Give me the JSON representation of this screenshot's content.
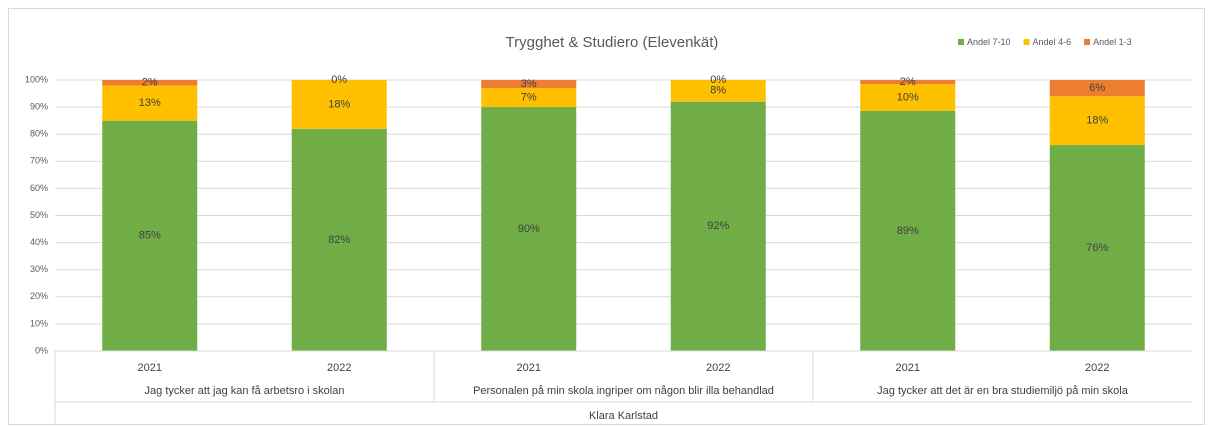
{
  "chart_data": {
    "type": "stacked_bar",
    "title": "Trygghet & Studiero (Elevenkät)",
    "categories": [
      "2021",
      "2022",
      "2021",
      "2022",
      "2021",
      "2022"
    ],
    "category_groups": [
      {
        "label": "Jag tycker att jag kan få arbetsro i skolan",
        "span": 2
      },
      {
        "label": "Personalen på min skola ingriper om någon blir illa behandlad",
        "span": 2
      },
      {
        "label": "Jag tycker att det är en bra studiemiljö på min skola",
        "span": 2
      }
    ],
    "category_super": "Klara Karlstad",
    "series": [
      {
        "name": "Andel 7-10",
        "color": "#70ad47",
        "values": [
          85,
          82,
          90,
          92,
          88.6,
          76
        ],
        "value_labels": [
          "85%",
          "82%",
          "90%",
          "92%",
          "89%",
          "76%"
        ]
      },
      {
        "name": "Andel 4-6",
        "color": "#ffc000",
        "values": [
          13,
          18,
          7,
          8,
          9.9,
          18
        ],
        "value_labels": [
          "13%",
          "18%",
          "7%",
          "8%",
          "10%",
          "18%"
        ]
      },
      {
        "name": "Andel 1-3",
        "color": "#ed7d31",
        "values": [
          2,
          0,
          3,
          0,
          1.5,
          6
        ],
        "value_labels": [
          "2%",
          "0%",
          "3%",
          "0%",
          "2%",
          "6%"
        ]
      }
    ],
    "ylim": [
      0,
      100
    ],
    "yticks": [
      {
        "value": 0,
        "label": "0%"
      },
      {
        "value": 10,
        "label": "10%"
      },
      {
        "value": 20,
        "label": "20%"
      },
      {
        "value": 30,
        "label": "30%"
      },
      {
        "value": 40,
        "label": "40%"
      },
      {
        "value": 50,
        "label": "50%"
      },
      {
        "value": 60,
        "label": "60%"
      },
      {
        "value": 70,
        "label": "70%"
      },
      {
        "value": 80,
        "label": "80%"
      },
      {
        "value": 90,
        "label": "90%"
      },
      {
        "value": 100,
        "label": "100%"
      }
    ],
    "grid": true,
    "legend": "top-right"
  }
}
